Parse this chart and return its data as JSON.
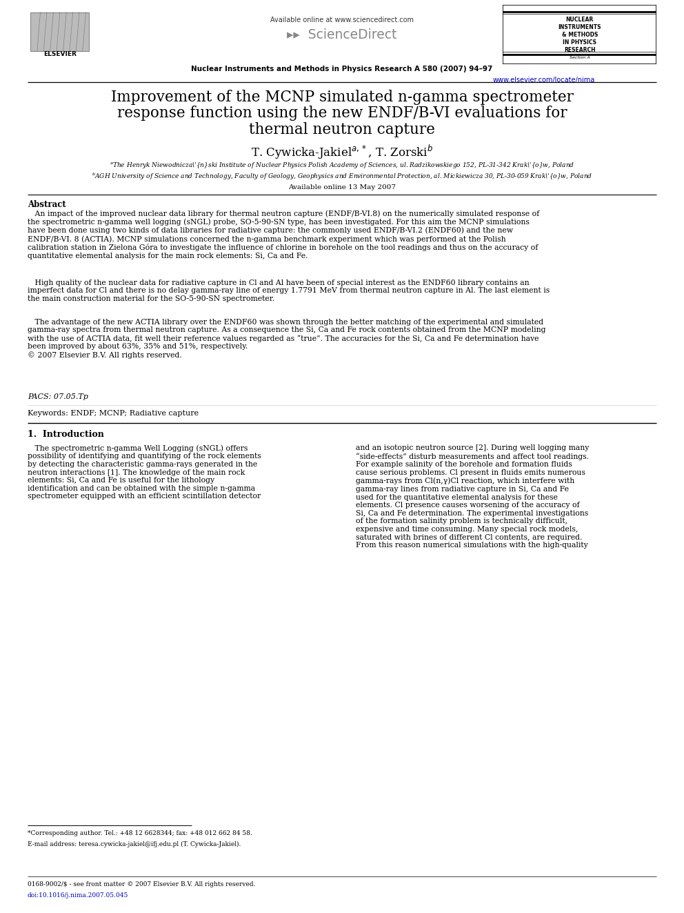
{
  "bg_color": "#ffffff",
  "title_line1": "Improvement of the MCNP simulated n-gamma spectrometer",
  "title_line2": "response function using the new ENDF/B-VI evaluations for",
  "title_line3": "thermal neutron capture",
  "authors_raw": "T. Cywicka-Jakiel$^{a,*}$, T. Zorski$^{b}$",
  "affil_a": "aThe Henryk Niewodniczański Institute of Nuclear Physics Polish Academy of Sciences, ul. Radzikowskiego 152, PL-31-342 Kraków, Poland",
  "affil_b": "bAGH University of Science and Technology, Faculty of Geology, Geophysics and Environmental Protection, al. Mickiewicza 30, PL-30-059 Kraków, Poland",
  "available_online": "Available online 13 May 2007",
  "header_journal": "Nuclear Instruments and Methods in Physics Research A 580 (2007) 94–97",
  "header_url": "www.elsevier.com/locate/nima",
  "header_sciencedirect": "Available online at www.sciencedirect.com",
  "abstract_title": "Abstract",
  "abstract_p1": "   An impact of the improved nuclear data library for thermal neutron capture (ENDF/B-VI.8) on the numerically simulated response of\nthe spectrometric n-gamma well logging (sNGL) probe, SO-5-90-SN type, has been investigated. For this aim the MCNP simulations\nhave been done using two kinds of data libraries for radiative capture: the commonly used ENDF/B-VI.2 (ENDF60) and the new\nENDF/B-VI. 8 (ACTIA). MCNP simulations concerned the n-gamma benchmark experiment which was performed at the Polish\ncalibration station in Zielona Góra to investigate the influence of chlorine in borehole on the tool readings and thus on the accuracy of\nquantitative elemental analysis for the main rock elements: Si, Ca and Fe.",
  "abstract_p2": "   High quality of the nuclear data for radiative capture in Cl and Al have been of special interest as the ENDF60 library contains an\nimperfect data for Cl and there is no delay gamma-ray line of energy 1.7791 MeV from thermal neutron capture in Al. The last element is\nthe main construction material for the SO-5-90-SN spectrometer.",
  "abstract_p3": "   The advantage of the new ACTIA library over the ENDF60 was shown through the better matching of the experimental and simulated\ngamma-ray spectra from thermal neutron capture. As a consequence the Si, Ca and Fe rock contents obtained from the MCNP modeling\nwith the use of ACTIA data, fit well their reference values regarded as “true”. The accuracies for the Si, Ca and Fe determination have\nbeen improved by about 63%, 35% and 51%, respectively.\n© 2007 Elsevier B.V. All rights reserved.",
  "pacs": "PACS: 07.05.Tp",
  "keywords": "Keywords: ENDF; MCNP; Radiative capture",
  "section_title": "1.  Introduction",
  "intro_left": "   The spectrometric n-gamma Well Logging (sNGL) offers\npossibility of identifying and quantifying of the rock elements\nby detecting the characteristic gamma-rays generated in the\nneutron interactions [1]. The knowledge of the main rock\nelements: Si, Ca and Fe is useful for the lithology\nidentification and can be obtained with the simple n-gamma\nspectrometer equipped with an efficient scintillation detector",
  "intro_right": "and an isotopic neutron source [2]. During well logging many\n“side-effects” disturb measurements and affect tool readings.\nFor example salinity of the borehole and formation fluids\ncause serious problems. Cl present in fluids emits numerous\ngamma-rays from Cl(n,γ)Cl reaction, which interfere with\ngamma-ray lines from radiative capture in Si, Ca and Fe\nused for the quantitative elemental analysis for these\nelements. Cl presence causes worsening of the accuracy of\nSi, Ca and Fe determination. The experimental investigations\nof the formation salinity problem is technically difficult,\nexpensive and time consuming. Many special rock models,\nsaturated with brines of different Cl contents, are required.\nFrom this reason numerical simulations with the high-quality",
  "footnote_line1": "*Corresponding author. Tel.: +48 12 6628344; fax: +48 012 662 84 58.",
  "footnote_line2": "E-mail address: teresa.cywicka-jakiel@ifj.edu.pl (T. Cywicka-Jakiel).",
  "footer_line1": "0168-9002/$ - see front matter © 2007 Elsevier B.V. All rights reserved.",
  "footer_line2": "doi:10.1016/j.nima.2007.05.045",
  "url_color": "#0000bb",
  "text_color": "#000000",
  "nim_lines": [
    "NUCLEAR",
    "INSTRUMENTS",
    "& METHODS",
    "IN PHYSICS",
    "RESEARCH"
  ],
  "nim_sub": "Section A"
}
